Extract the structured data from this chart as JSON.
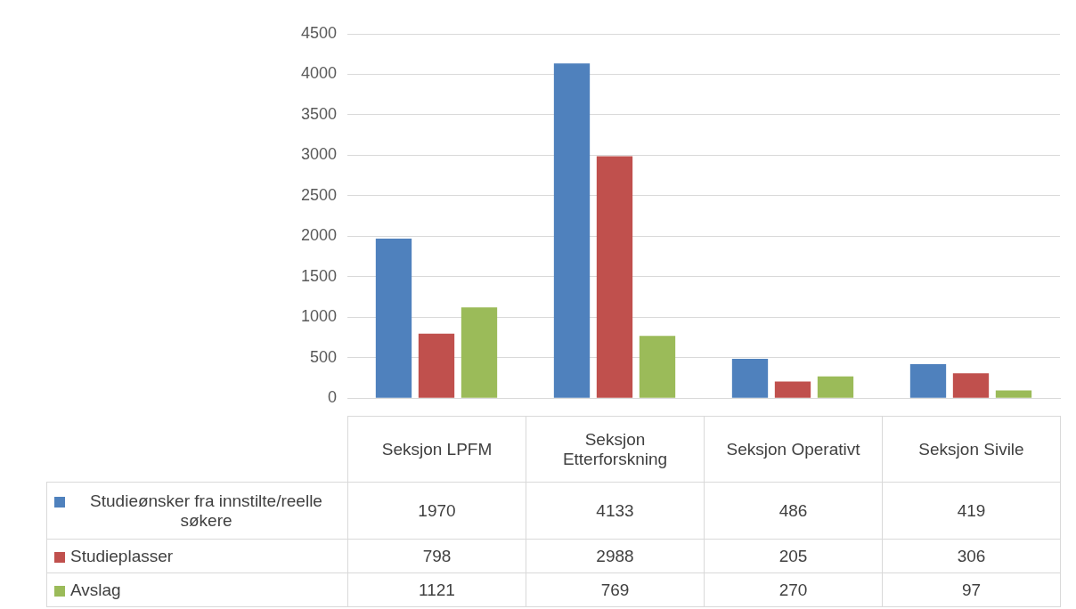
{
  "chart_data": {
    "type": "bar",
    "categories": [
      "Seksjon LPFM",
      "Seksjon Etterforskning",
      "Seksjon Operativt",
      "Seksjon Sivile"
    ],
    "series": [
      {
        "name": "Studieønsker fra innstilte/reelle søkere",
        "color": "#4f81bd",
        "values": [
          1970,
          4133,
          486,
          419
        ]
      },
      {
        "name": "Studieplasser",
        "color": "#c0504d",
        "values": [
          798,
          2988,
          205,
          306
        ]
      },
      {
        "name": "Avslag",
        "color": "#9bbb59",
        "values": [
          1121,
          769,
          270,
          97
        ]
      }
    ],
    "ylim": [
      0,
      4500
    ],
    "yticks": [
      0,
      500,
      1000,
      1500,
      2000,
      2500,
      3000,
      3500,
      4000,
      4500
    ],
    "grid": "y",
    "legend": "bottom",
    "data_labels": true
  }
}
